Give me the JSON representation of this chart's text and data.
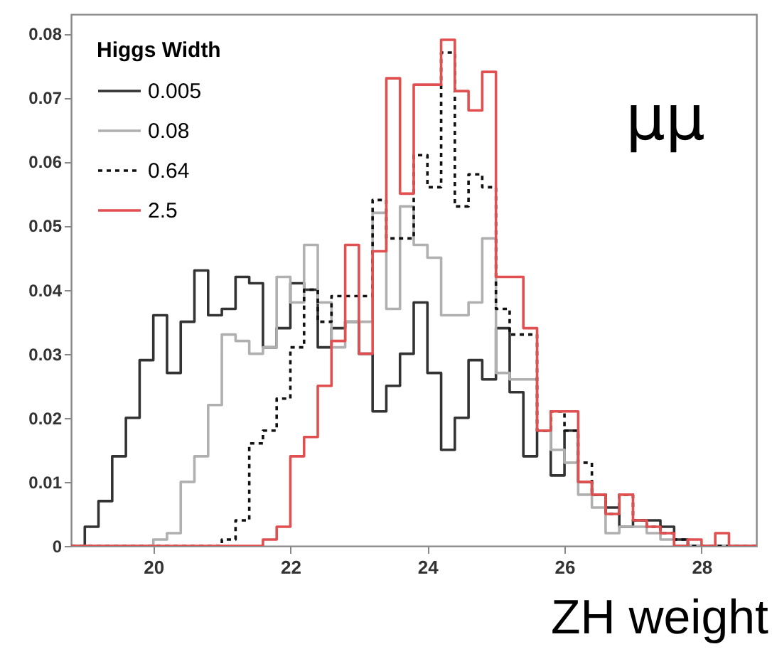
{
  "chart_data": {
    "type": "histogram",
    "xlabel": "ZH weight",
    "legend_title": "Higgs Width",
    "legend": "top left",
    "annotations": [
      "μμ"
    ],
    "bins": [
      18.8,
      19.0,
      19.2,
      19.4,
      19.6,
      19.8,
      20.0,
      20.2,
      20.4,
      20.6,
      20.8,
      21.0,
      21.2,
      21.4,
      21.6,
      21.8,
      22.0,
      22.2,
      22.4,
      22.6,
      22.8,
      23.0,
      23.2,
      23.4,
      23.6,
      23.8,
      24.0,
      24.2,
      24.4,
      24.6,
      24.8,
      25.0,
      25.2,
      25.4,
      25.6,
      25.8,
      26.0,
      26.2,
      26.4,
      26.6,
      26.8,
      27.0,
      27.2,
      27.4,
      27.6,
      27.8,
      28.0,
      28.2,
      28.4,
      28.6,
      28.8
    ],
    "series": [
      {
        "name": "0.005",
        "color": "#333333",
        "line_style": "solid",
        "values": [
          0,
          0.003,
          0.007,
          0.014,
          0.02,
          0.029,
          0.036,
          0.027,
          0.035,
          0.043,
          0.036,
          0.037,
          0.042,
          0.041,
          0.031,
          0.034,
          0.041,
          0.04,
          0.031,
          0.034,
          0.035,
          0.03,
          0.021,
          0.025,
          0.03,
          0.038,
          0.027,
          0.015,
          0.02,
          0.029,
          0.026,
          0.034,
          0.024,
          0.014,
          0.018,
          0.011,
          0.018,
          0.01,
          0.008,
          0.006,
          0.003,
          0.004,
          0.004,
          0.003,
          0.001,
          0,
          0,
          0,
          0,
          0
        ]
      },
      {
        "name": "0.08",
        "color": "#b0b0b0",
        "line_style": "solid",
        "values": [
          0,
          0,
          0,
          0,
          0,
          0,
          0.001,
          0.002,
          0.01,
          0.014,
          0.022,
          0.033,
          0.032,
          0.03,
          0.031,
          0.042,
          0.038,
          0.047,
          0.038,
          0.031,
          0.035,
          0.035,
          0.052,
          0.037,
          0.053,
          0.047,
          0.045,
          0.036,
          0.036,
          0.038,
          0.048,
          0.027,
          0.026,
          0.026,
          0.018,
          0.015,
          0.013,
          0.008,
          0.006,
          0.002,
          0.003,
          0.003,
          0.002,
          0.001,
          0,
          0,
          0,
          0,
          0,
          0
        ]
      },
      {
        "name": "0.64",
        "color": "#111111",
        "line_style": "dashed",
        "values": [
          0,
          0,
          0,
          0,
          0,
          0,
          0,
          0,
          0,
          0,
          0,
          0.001,
          0.004,
          0.016,
          0.018,
          0.023,
          0.031,
          0.04,
          0.035,
          0.039,
          0.039,
          0.039,
          0.054,
          0.048,
          0.048,
          0.061,
          0.056,
          0.077,
          0.053,
          0.058,
          0.056,
          0.037,
          0.033,
          0.033,
          0.018,
          0.021,
          0.018,
          0.013,
          0.008,
          0.005,
          0.008,
          0.004,
          0.003,
          0.002,
          0.001,
          0,
          0,
          0,
          0,
          0
        ]
      },
      {
        "name": "2.5",
        "color": "#e05050",
        "line_style": "solid",
        "values": [
          0,
          0,
          0,
          0,
          0,
          0,
          0,
          0,
          0,
          0,
          0,
          0,
          0,
          0,
          0.001,
          0.003,
          0.014,
          0.017,
          0.025,
          0.032,
          0.047,
          0.03,
          0.046,
          0.073,
          0.055,
          0.072,
          0.072,
          0.079,
          0.071,
          0.068,
          0.074,
          0.042,
          0.042,
          0.034,
          0.018,
          0.021,
          0.021,
          0.01,
          0.008,
          0.005,
          0.008,
          0.004,
          0.003,
          0.002,
          0,
          0.001,
          0,
          0.002,
          0,
          0
        ]
      }
    ],
    "xlim": [
      18.8,
      28.8
    ],
    "xticks": [
      20,
      22,
      24,
      26,
      28
    ],
    "ylim": [
      0,
      0.083
    ],
    "yticks": [
      0,
      0.01,
      0.02,
      0.03,
      0.04,
      0.05,
      0.06,
      0.07,
      0.08
    ]
  }
}
